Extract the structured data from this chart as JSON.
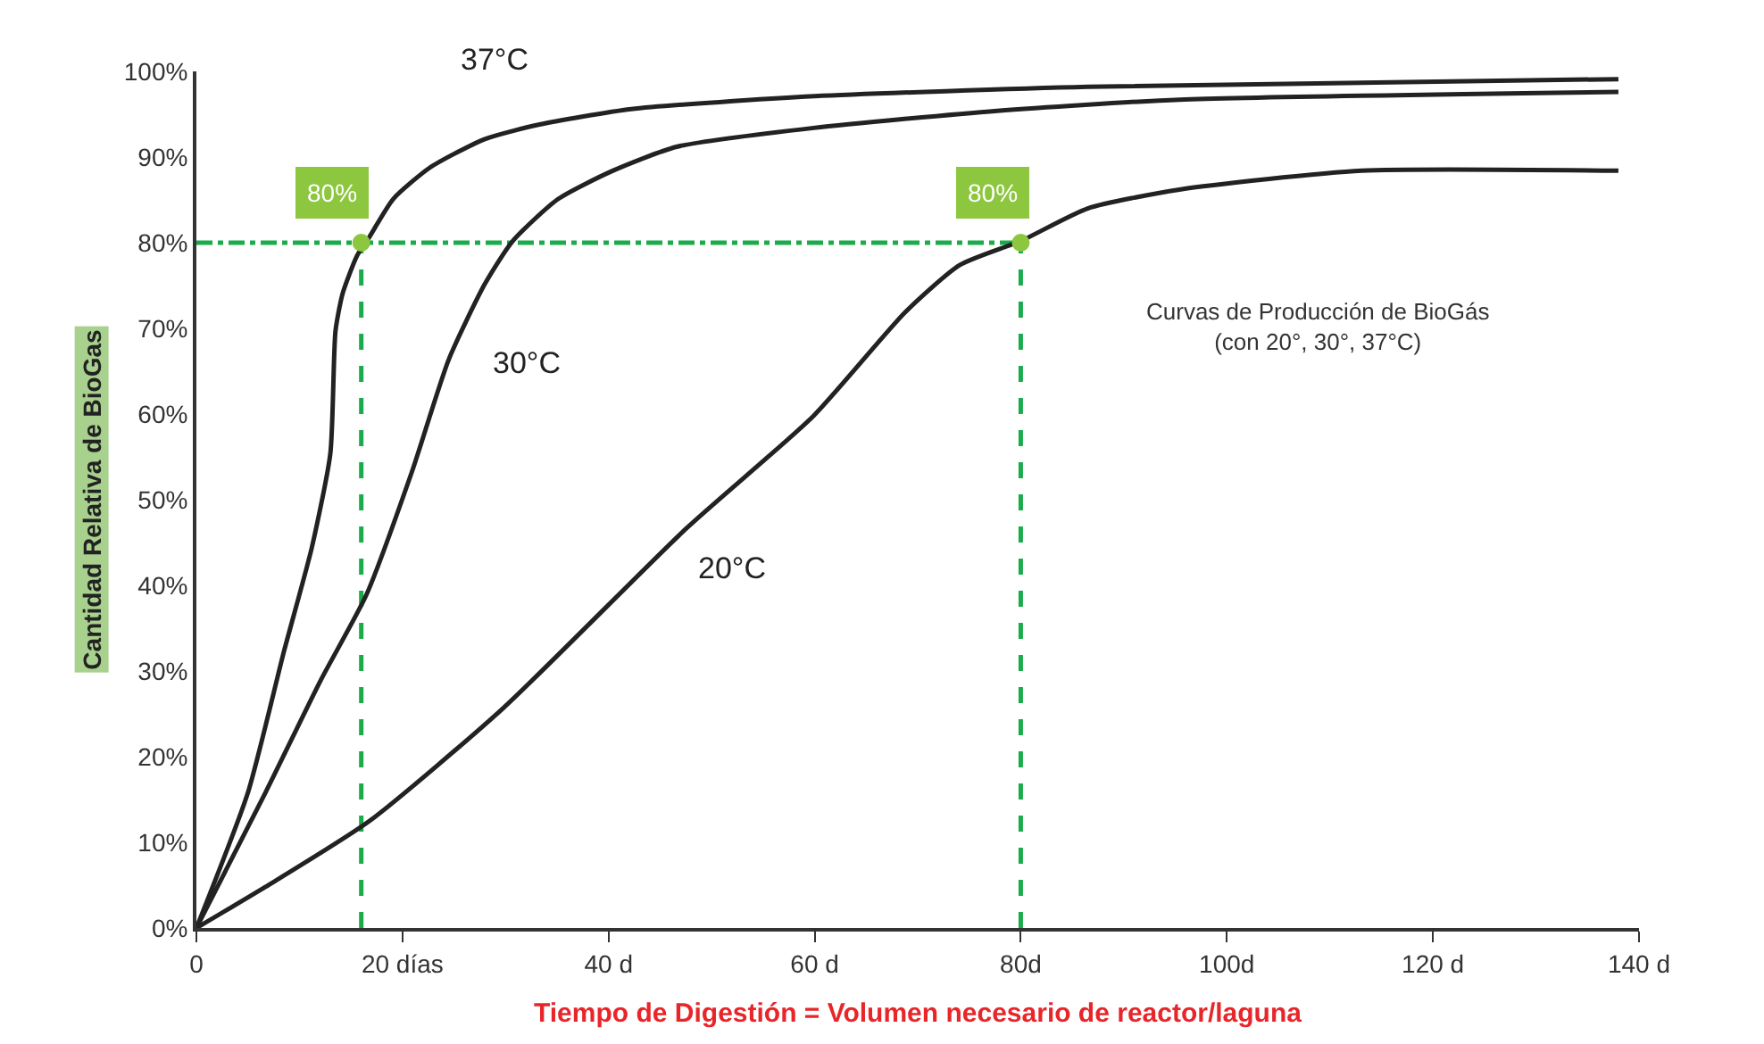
{
  "chart_data": {
    "type": "line",
    "xlabel": "Tiempo de Digestión = Volumen necesario de reactor/laguna",
    "ylabel": "Cantidad Relativa de BioGas",
    "xlim": [
      0,
      140
    ],
    "ylim": [
      0,
      100
    ],
    "xticks": [
      0,
      {
        "value": 20,
        "label": "20 días"
      },
      {
        "value": 40,
        "label": "40 d"
      },
      {
        "value": 60,
        "label": "60 d"
      },
      {
        "value": 80,
        "label": "80d"
      },
      {
        "value": 100,
        "label": "100d"
      },
      {
        "value": 120,
        "label": "120 d"
      },
      {
        "value": 140,
        "label": "140 d"
      }
    ],
    "yticks": [
      {
        "value": 0,
        "label": "0%"
      },
      {
        "value": 10,
        "label": "10%"
      },
      {
        "value": 20,
        "label": "20%"
      },
      {
        "value": 30,
        "label": "30%"
      },
      {
        "value": 40,
        "label": "40%"
      },
      {
        "value": 50,
        "label": "50%"
      },
      {
        "value": 60,
        "label": "60%"
      },
      {
        "value": 70,
        "label": "70%"
      },
      {
        "value": 80,
        "label": "80%"
      },
      {
        "value": 90,
        "label": "90%"
      },
      {
        "value": 100,
        "label": "100%"
      }
    ],
    "grid": false,
    "marker": "none",
    "line_style": "solid",
    "series": [
      {
        "name": "37°C",
        "color": "#222222",
        "x": [
          0,
          5,
          8.5,
          11.2,
          13,
          13.5,
          14.2,
          15.6,
          16.8,
          19.1,
          22.7,
          28,
          33.3,
          42.2,
          60,
          86.5,
          138
        ],
        "values": [
          0,
          15.8,
          32.3,
          44.4,
          55.4,
          69.7,
          74.1,
          78.5,
          80.7,
          85.1,
          88.8,
          92.1,
          93.8,
          95.6,
          97.1,
          98.2,
          99.1
        ]
      },
      {
        "name": "30°C",
        "color": "#222222",
        "x": [
          0,
          6.7,
          12.1,
          16.5,
          20.9,
          24.5,
          28,
          30.7,
          35.1,
          40.4,
          46.6,
          59.9,
          77.7,
          95.4,
          138
        ],
        "values": [
          0,
          15.8,
          29,
          38.9,
          53.2,
          66.4,
          75.2,
          80.2,
          85.1,
          88.4,
          91.2,
          93.4,
          95.4,
          96.7,
          97.6
        ]
      },
      {
        "name": "20°C",
        "color": "#222222",
        "x": [
          0,
          6.7,
          16.8,
          29.8,
          47.5,
          59.9,
          68.8,
          74.1,
          80,
          86.5,
          95.4,
          113.1,
          138
        ],
        "values": [
          0,
          4.8,
          12.5,
          25.7,
          46.6,
          59.8,
          71.9,
          77.4,
          80.2,
          84,
          86.2,
          88.4,
          88.4
        ]
      },
      {
        "type": "scatter",
        "marker": "circle",
        "color": "#8dc63f",
        "x": [
          16,
          80
        ],
        "values": [
          80,
          80
        ]
      }
    ],
    "ref_lines": [
      {
        "axis": "y",
        "value": 80,
        "color": "#1aab4b",
        "line_style": "dashdot"
      },
      {
        "axis": "x",
        "value": 16,
        "color": "#1aab4b",
        "line_style": "dashed"
      },
      {
        "axis": "x",
        "value": 80,
        "color": "#1aab4b",
        "line_style": "dashed"
      }
    ],
    "annotations": [
      {
        "text": "80%",
        "x": 16,
        "y": 80
      },
      {
        "text": "80%",
        "x": 80,
        "y": 80
      },
      "Curvas de Producción de BioGás\n(con 20°, 30°, 37°C)"
    ]
  }
}
